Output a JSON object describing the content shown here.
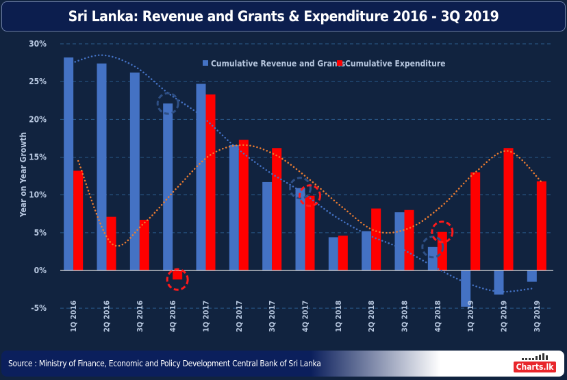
{
  "title": "Sri Lanka: Revenue and Grants & Expenditure 2016 - 3Q 2019",
  "source": "Source : Ministry of Finance, Economic and Policy Development Central Bank of Sri Lanka",
  "logo": "Charts.lk",
  "colors": {
    "revenue": "#4472c4",
    "expenditure": "#ff0000",
    "revenue_trend": "#4472c4",
    "expenditure_trend": "#ed7d31",
    "background": "#11233f",
    "title_bar": "#0c1e4e"
  },
  "chart_data": {
    "type": "bar",
    "title": "Sri Lanka: Revenue and Grants & Expenditure 2016 - 3Q 2019",
    "ylabel": "Year on Year Growth",
    "xlabel": "",
    "ylim": [
      -5,
      30
    ],
    "yticks": [
      "-5%",
      "0%",
      "5%",
      "10%",
      "15%",
      "20%",
      "25%",
      "30%"
    ],
    "ytick_values": [
      -5,
      0,
      5,
      10,
      15,
      20,
      25,
      30
    ],
    "grid": true,
    "legend": "top",
    "categories": [
      "1Q 2016",
      "2Q 2016",
      "3Q 2016",
      "4Q 2016",
      "1Q 2017",
      "2Q 2017",
      "3Q 2017",
      "4Q 2017",
      "1Q 2018",
      "2Q 2018",
      "3Q 2018",
      "4Q 2018",
      "1Q 2019",
      "2Q 2019",
      "3Q 2019"
    ],
    "series": [
      {
        "name": "Cumulative Revenue and Grants",
        "values": [
          28.2,
          27.4,
          26.2,
          22.1,
          24.7,
          16.6,
          11.7,
          10.9,
          4.4,
          5.2,
          7.7,
          3.1,
          -4.8,
          -3.2,
          -1.5
        ]
      },
      {
        "name": "Cumulative Expenditure",
        "values": [
          13.2,
          7.1,
          6.7,
          -1.2,
          23.3,
          17.3,
          16.2,
          9.9,
          4.6,
          8.2,
          8.0,
          5.1,
          13.0,
          16.2,
          11.8
        ]
      }
    ],
    "trendlines": [
      {
        "series": "Cumulative Revenue and Grants",
        "style": "dotted",
        "values": [
          27.3,
          28.5,
          27.0,
          23.5,
          20.5,
          16.5,
          13.2,
          10.5,
          7.3,
          4.8,
          3.0,
          0.6,
          -1.6,
          -2.8,
          -2.4
        ]
      },
      {
        "series": "Cumulative Expenditure",
        "style": "dotted",
        "values": [
          14.5,
          3.6,
          6.3,
          11.0,
          15.3,
          16.6,
          15.2,
          12.0,
          8.3,
          5.2,
          5.6,
          8.6,
          13.0,
          15.8,
          11.7
        ]
      }
    ],
    "highlights": [
      {
        "category": "4Q 2016",
        "series": "Cumulative Revenue and Grants"
      },
      {
        "category": "4Q 2016",
        "series": "Cumulative Expenditure"
      },
      {
        "category": "4Q 2017",
        "series": "Cumulative Revenue and Grants"
      },
      {
        "category": "4Q 2017",
        "series": "Cumulative Expenditure"
      },
      {
        "category": "4Q 2018",
        "series": "Cumulative Revenue and Grants"
      },
      {
        "category": "4Q 2018",
        "series": "Cumulative Expenditure"
      }
    ]
  }
}
